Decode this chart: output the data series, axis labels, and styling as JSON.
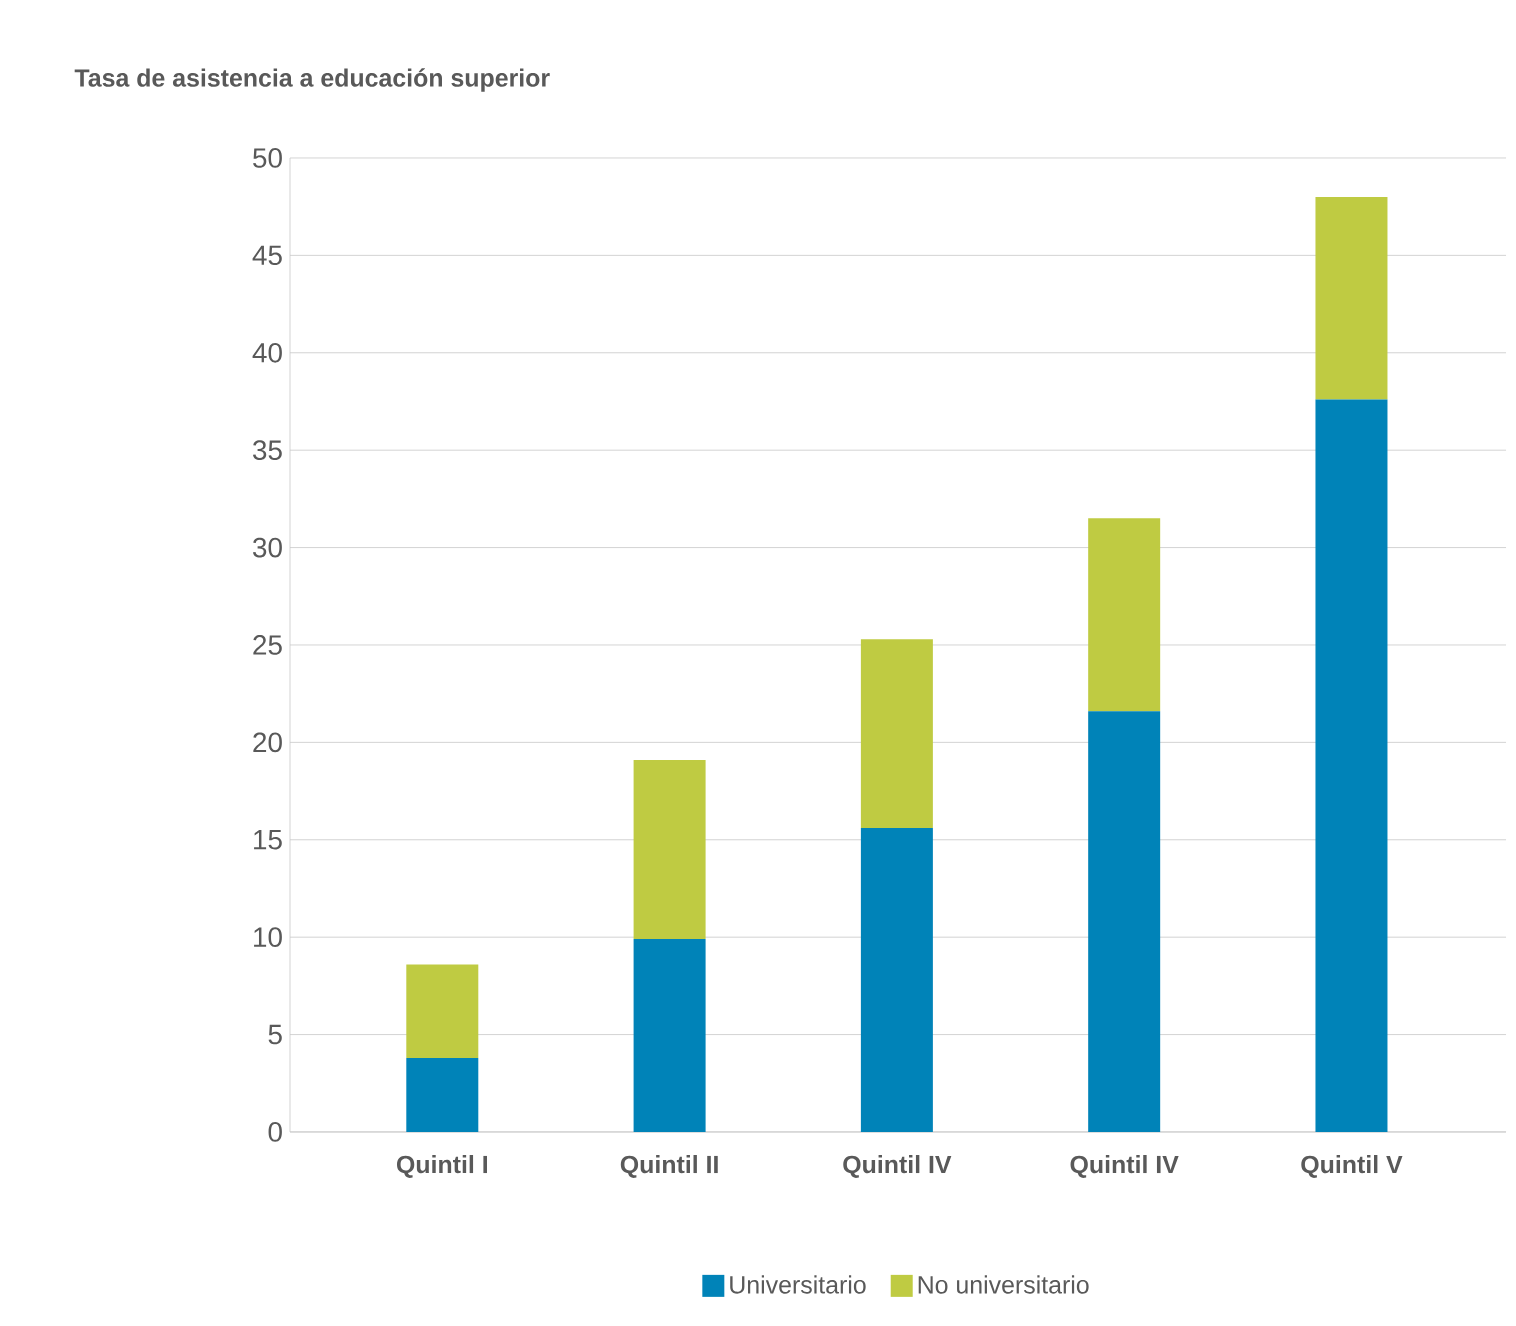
{
  "chart_data": {
    "type": "bar",
    "title": "Tasa de asistencia a educación superior",
    "categories": [
      "Quintil I",
      "Quintil II",
      "Quintil IV",
      "Quintil IV",
      "Quintil V"
    ],
    "series": [
      {
        "name": "Universitario",
        "color": "#0083b8",
        "values": [
          3.8,
          9.9,
          15.6,
          21.6,
          37.6
        ]
      },
      {
        "name": "No universitario",
        "color": "#bfcb42",
        "values": [
          4.8,
          9.2,
          9.7,
          9.9,
          10.4
        ]
      }
    ],
    "stacked": true,
    "ylim": [
      0,
      50
    ],
    "yticks": [
      0,
      5,
      10,
      15,
      20,
      25,
      30,
      35,
      40,
      45,
      50
    ],
    "grid": "y",
    "legend": "bottom"
  }
}
